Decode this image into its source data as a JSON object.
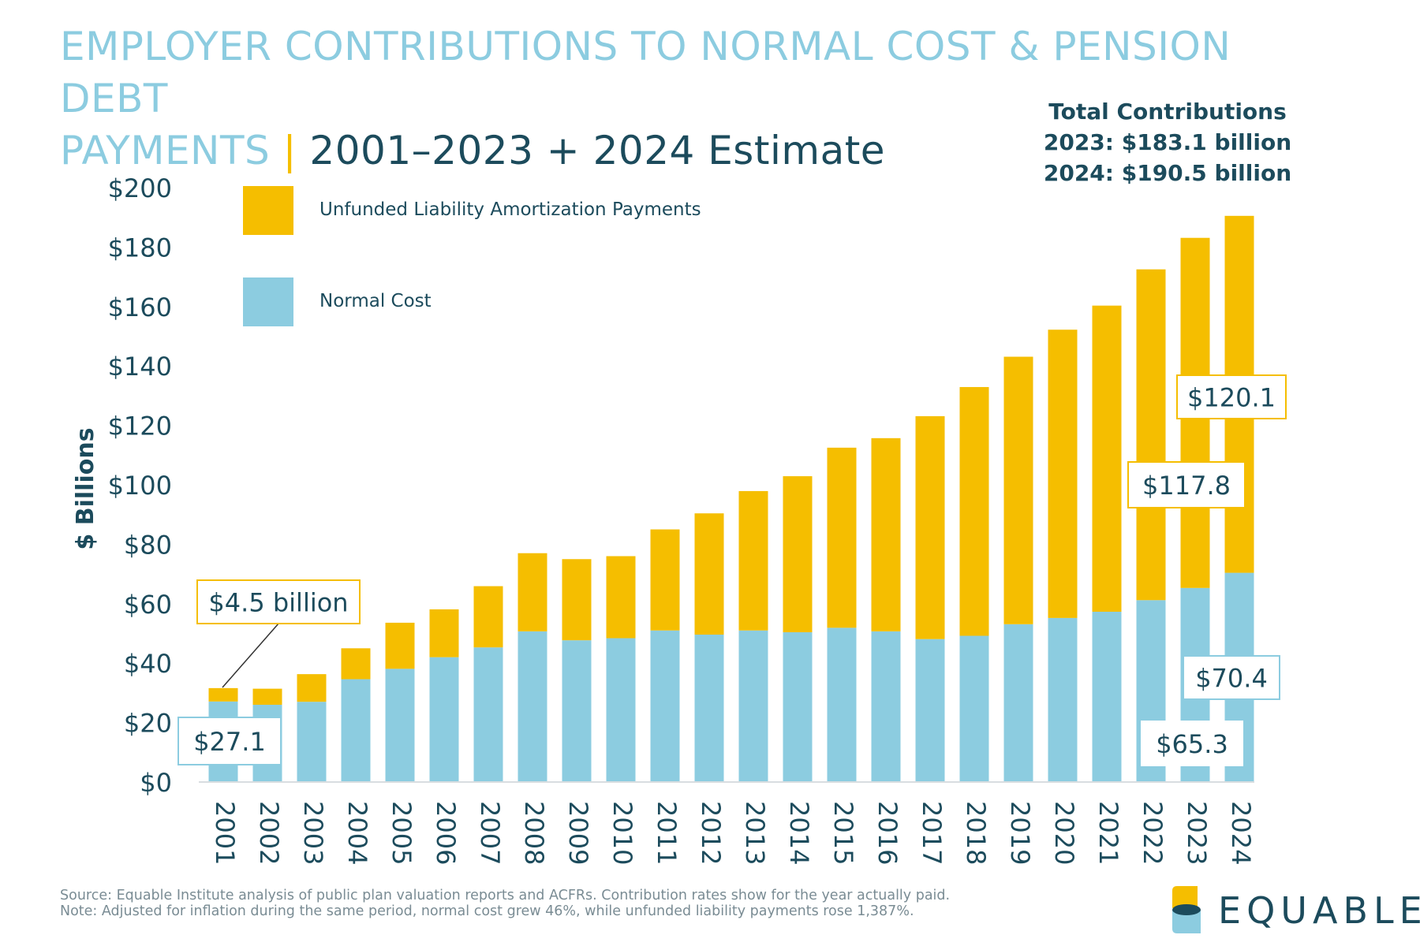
{
  "title": {
    "line1": "EMPLOYER CONTRIBUTIONS TO NORMAL COST & PENSION DEBT",
    "line2_main": "PAYMENTS",
    "separator": "|",
    "line2_sub": "2001–2023 + 2024 Estimate"
  },
  "totals": {
    "heading": "Total Contributions",
    "line_2023": "2023: $183.1 billion",
    "line_2024": "2024: $190.5 billion"
  },
  "chart_data": {
    "type": "bar",
    "stacked": true,
    "ylabel": "$ Billions",
    "ylim": [
      0,
      200
    ],
    "y_ticks": [
      0,
      20,
      40,
      60,
      80,
      100,
      120,
      140,
      160,
      180,
      200
    ],
    "y_tick_labels": [
      "$0",
      "$20",
      "$40",
      "$60",
      "$80",
      "$100",
      "$120",
      "$140",
      "$160",
      "$180",
      "$200"
    ],
    "categories": [
      "2001",
      "2002",
      "2003",
      "2004",
      "2005",
      "2006",
      "2007",
      "2008",
      "2009",
      "2010",
      "2011",
      "2012",
      "2013",
      "2014",
      "2015",
      "2016",
      "2017",
      "2018",
      "2019",
      "2020",
      "2021",
      "2022",
      "2023",
      "2024"
    ],
    "series": [
      {
        "name": "Normal Cost",
        "color": "#8ccce0",
        "values": [
          27.1,
          26.0,
          27.0,
          34.6,
          38.1,
          42.0,
          45.3,
          50.7,
          47.7,
          48.4,
          51.0,
          49.6,
          51.0,
          50.4,
          51.9,
          50.7,
          48.1,
          49.2,
          53.1,
          55.2,
          57.3,
          61.2,
          65.3,
          70.4
        ]
      },
      {
        "name": "Unfunded Liability Amortization Payments",
        "color": "#f5be00",
        "values": [
          4.5,
          5.4,
          9.3,
          10.4,
          15.5,
          16.1,
          20.6,
          26.3,
          27.3,
          27.6,
          34.0,
          40.8,
          46.9,
          52.5,
          60.6,
          65.0,
          75.0,
          83.7,
          90.0,
          97.0,
          103.0,
          111.3,
          117.8,
          120.1
        ]
      }
    ],
    "legend": [
      "Unfunded Liability Amortization Payments",
      "Normal Cost"
    ],
    "legend_position": "top-left",
    "annotations": {
      "nc_2001": "$27.1",
      "ual_2001": "$4.5 billion",
      "ual_2023": "$117.8",
      "ual_2024": "$120.1",
      "nc_2023": "$65.3",
      "nc_2024": "$70.4"
    }
  },
  "footer": {
    "source": "Source: Equable Institute analysis of public plan valuation reports and ACFRs. Contribution rates show for the year actually paid.",
    "note": "Note: Adjusted for inflation during the same period, normal cost grew 46%, while unfunded liability payments rose 1,387%."
  },
  "logo": {
    "text": "EQUABLE",
    "colors": [
      "#f5be00",
      "#8ccce0",
      "#1c4b5c"
    ]
  }
}
